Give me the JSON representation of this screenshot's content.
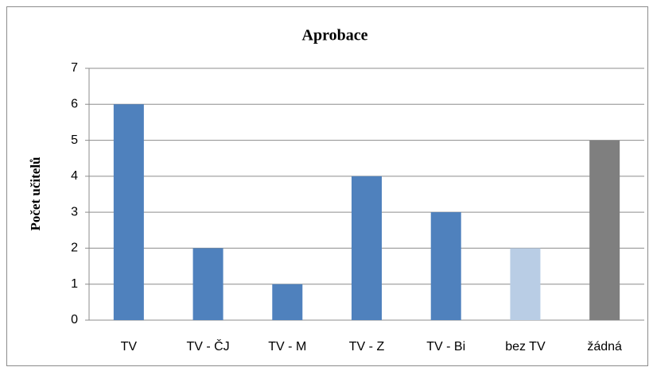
{
  "chart_data": {
    "type": "bar",
    "title": "Aprobace",
    "y_label": "Počet učitelů",
    "categories": [
      "TV",
      "TV - ČJ",
      "TV - M",
      "TV - Z",
      "TV - Bi",
      "bez TV",
      "žádná"
    ],
    "values": [
      6,
      2,
      1,
      4,
      3,
      2,
      5
    ],
    "colors": [
      "#4f81bd",
      "#4f81bd",
      "#4f81bd",
      "#4f81bd",
      "#4f81bd",
      "#b9cde5",
      "#7f7f7f"
    ],
    "ylim": [
      0,
      7
    ],
    "yticks": [
      0,
      1,
      2,
      3,
      4,
      5,
      6,
      7
    ],
    "grid": true
  }
}
